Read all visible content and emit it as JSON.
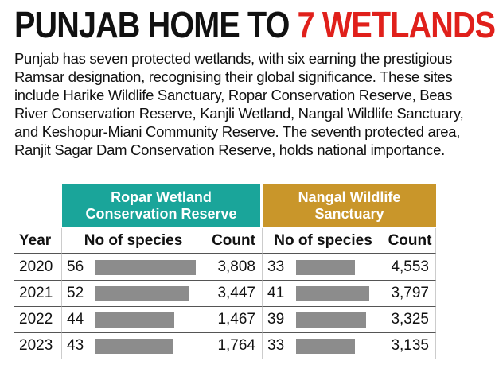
{
  "header": {
    "title": "PUNJAB HOME TO",
    "title_highlight": "7 WETLANDS"
  },
  "intro": "Punjab has seven protected wetlands, with six earning the prestigious Ramsar designation, recognising their global significance. These sites include Harike Wildlife Sanctuary, Ropar Conservation Reserve, Beas River Conservation Reserve, Kanjli Wetland, Nangal Wildlife Sanctuary, and Keshopur-Miani Community Reserve. The seventh protected area, Ranjit Sagar Dam Conservation Reserve, holds national importance.",
  "table": {
    "groups": [
      "Ropar Wetland Conservation Reserve",
      "Nangal Wildlife Sanctuary"
    ],
    "columns": [
      "Year",
      "No of species",
      "Count",
      "No of species",
      "Count"
    ],
    "rows": [
      [
        2020,
        56,
        "3,808",
        33,
        "4,553"
      ],
      [
        2021,
        52,
        "3,447",
        41,
        "3,797"
      ],
      [
        2022,
        44,
        "1,467",
        39,
        "3,325"
      ],
      [
        2023,
        43,
        "1,764",
        33,
        "3,135"
      ]
    ]
  }
}
